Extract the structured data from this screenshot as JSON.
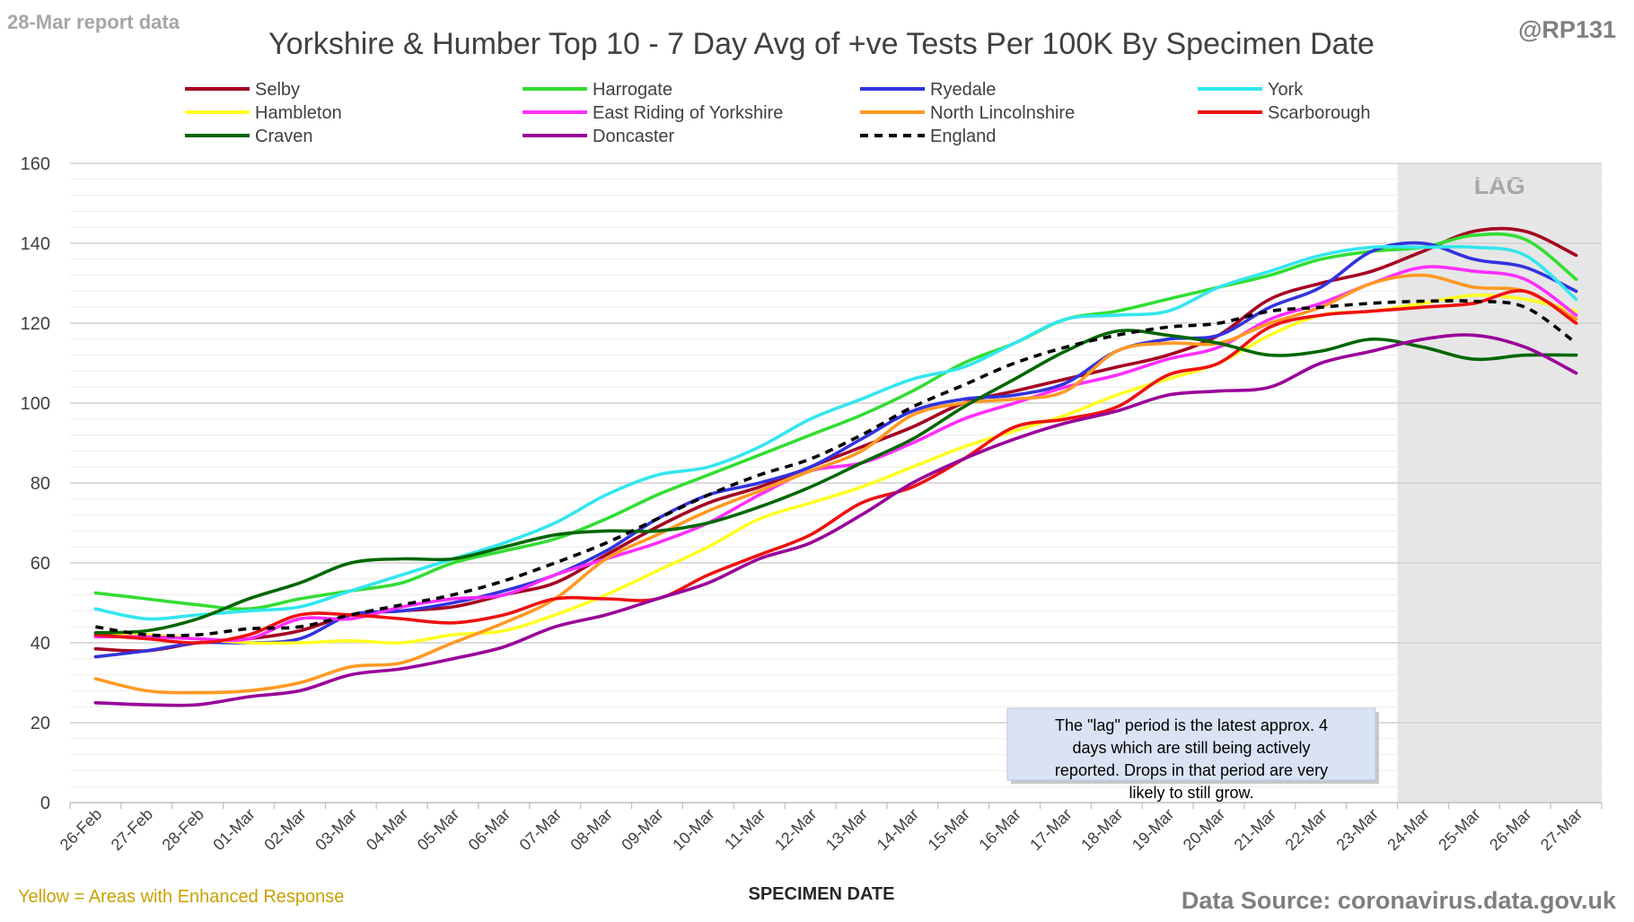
{
  "header": {
    "report_label": "28-Mar report data",
    "handle": "@RP131"
  },
  "footer": {
    "note": "Yellow = Areas with Enhanced Response",
    "source": "Data Source: coronavirus.data.gov.uk"
  },
  "colors": {
    "lag_band": "#e6e6e6",
    "gridline": "#d9d9d9",
    "note_fill": "#dae3f3",
    "report_label": "#a6a6a6",
    "handle": "#808080",
    "footer_note": "#c9a100",
    "footer_source": "#7f7f7f"
  },
  "chart_data": {
    "type": "line",
    "title": "Yorkshire & Humber Top 10 - 7 Day Avg of +ve Tests Per 100K By Specimen Date",
    "xlabel": "SPECIMEN DATE",
    "ylabel": "",
    "ylim": [
      0,
      160
    ],
    "yticks": [
      0,
      20,
      40,
      60,
      80,
      100,
      120,
      140,
      160
    ],
    "grid": true,
    "legend_position": "top",
    "categories": [
      "26-Feb",
      "27-Feb",
      "28-Feb",
      "01-Mar",
      "02-Mar",
      "03-Mar",
      "04-Mar",
      "05-Mar",
      "06-Mar",
      "07-Mar",
      "08-Mar",
      "09-Mar",
      "10-Mar",
      "11-Mar",
      "12-Mar",
      "13-Mar",
      "14-Mar",
      "15-Mar",
      "16-Mar",
      "17-Mar",
      "18-Mar",
      "19-Mar",
      "20-Mar",
      "21-Mar",
      "22-Mar",
      "23-Mar",
      "24-Mar",
      "25-Mar",
      "26-Mar",
      "27-Mar"
    ],
    "lag_band": {
      "label": "LAG",
      "from": "24-Mar",
      "to": "27-Mar"
    },
    "annotation": "The \"lag\" period is the latest approx. 4 days which are still being actively reported. Drops in that period are very likely to still grow.",
    "series": [
      {
        "name": "Selby",
        "color": "#a50021",
        "dash": false,
        "values": [
          38.5,
          38,
          40,
          41,
          43,
          47,
          48,
          49,
          52,
          55,
          62,
          69,
          75,
          79,
          84,
          89,
          94,
          100,
          103,
          106,
          109,
          112,
          117,
          126,
          130,
          133,
          138,
          143,
          143,
          137
        ]
      },
      {
        "name": "Harrogate",
        "color": "#33dd33",
        "dash": false,
        "values": [
          52.5,
          51,
          49.5,
          48.5,
          51,
          53,
          55,
          60,
          63,
          66,
          71,
          77,
          82,
          87,
          92,
          97,
          103,
          110,
          115,
          121,
          123,
          126,
          129,
          132,
          136,
          138,
          139,
          142,
          141,
          131
        ]
      },
      {
        "name": "Ryedale",
        "color": "#3333dd",
        "dash": false,
        "values": [
          36.5,
          38,
          40,
          40,
          41,
          47,
          48,
          50,
          53,
          57,
          63,
          71,
          77,
          80,
          84,
          91,
          98,
          101,
          102,
          105,
          113,
          116,
          117,
          124,
          129,
          138,
          140,
          136,
          134,
          128
        ]
      },
      {
        "name": "York",
        "color": "#33e6ee",
        "dash": false,
        "values": [
          48.5,
          46,
          47,
          48,
          49,
          53,
          57,
          61,
          65,
          70,
          77,
          82,
          84,
          89,
          96,
          101,
          106,
          109,
          115,
          121,
          122,
          123,
          129,
          133,
          137,
          139,
          139,
          139,
          137,
          126
        ]
      },
      {
        "name": "Hambleton",
        "color": "#ffff22",
        "dash": false,
        "values": [
          42,
          42,
          41,
          40,
          40,
          40.5,
          40,
          42,
          43,
          47,
          52,
          58,
          64,
          71,
          75,
          79,
          84,
          89,
          93,
          97,
          102,
          106,
          110,
          117,
          122,
          123,
          125,
          127,
          126,
          123
        ]
      },
      {
        "name": "East Riding of Yorkshire",
        "color": "#ff2eff",
        "dash": false,
        "values": [
          41.5,
          41.5,
          41,
          41,
          46,
          46,
          49,
          51,
          52,
          57,
          61,
          65,
          70,
          77,
          83,
          85,
          90,
          96,
          100,
          104,
          107,
          111,
          114,
          121,
          125,
          130,
          134,
          133,
          131,
          122
        ]
      },
      {
        "name": "North Lincolnshire",
        "color": "#ff9922",
        "dash": false,
        "values": [
          31,
          28,
          27.5,
          28,
          30,
          34,
          35,
          40,
          45,
          51,
          61,
          67,
          73,
          78,
          83,
          88,
          97,
          100,
          101,
          103,
          113,
          115,
          115,
          120,
          124,
          130,
          132,
          129,
          128,
          121
        ]
      },
      {
        "name": "Scarborough",
        "color": "#ee1111",
        "dash": false,
        "values": [
          42,
          41,
          40,
          42,
          47,
          47,
          46,
          45,
          47,
          51,
          51,
          51,
          57,
          62,
          67,
          75,
          79,
          86,
          94,
          96,
          99,
          107,
          110,
          119,
          122,
          123,
          124,
          125,
          128,
          120
        ]
      },
      {
        "name": "Craven",
        "color": "#006600",
        "dash": false,
        "values": [
          42.5,
          43,
          46,
          51,
          55,
          60,
          61,
          61,
          64,
          67,
          68,
          68,
          70,
          74,
          79,
          85,
          91,
          99,
          106,
          113,
          118,
          117,
          115,
          112,
          113,
          116,
          114,
          111,
          112,
          112
        ]
      },
      {
        "name": "Doncaster",
        "color": "#990099",
        "dash": false,
        "values": [
          25,
          24.5,
          24.5,
          26.5,
          28,
          32,
          33.5,
          36,
          39,
          44,
          47,
          51,
          55,
          61,
          65,
          72,
          80,
          86,
          91,
          95,
          98,
          102,
          103,
          104,
          110,
          113,
          116,
          117,
          114,
          107.5
        ]
      },
      {
        "name": "England",
        "color": "#000000",
        "dash": true,
        "values": [
          44,
          42,
          42,
          43.5,
          44,
          47,
          49.5,
          52,
          55.5,
          60,
          65,
          71,
          77,
          82,
          86,
          92,
          99,
          104.5,
          110,
          114,
          117,
          119,
          120,
          123,
          124,
          125,
          125.5,
          125.5,
          124,
          115
        ]
      }
    ]
  }
}
